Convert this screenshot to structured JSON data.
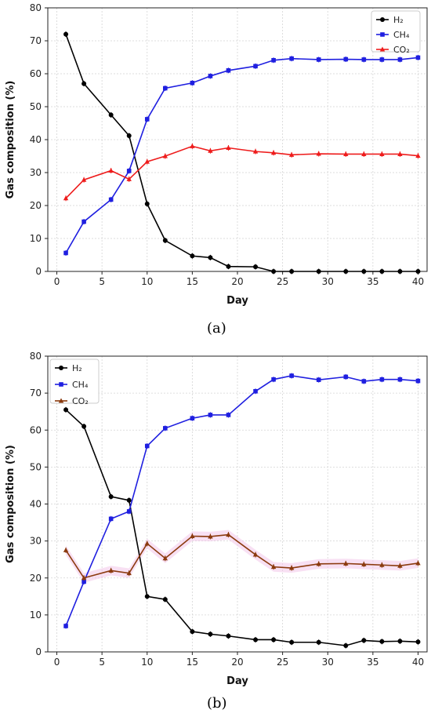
{
  "chart_data": [
    {
      "type": "line",
      "panel": "(a)",
      "xlabel": "Day",
      "ylabel": "Gas composition (%)",
      "xlim": [
        -1,
        41
      ],
      "ylim": [
        0,
        80
      ],
      "xticks": [
        0,
        5,
        10,
        15,
        20,
        25,
        30,
        35,
        40
      ],
      "yticks": [
        0,
        10,
        20,
        30,
        40,
        50,
        60,
        70,
        80
      ],
      "grid": true,
      "legend": "top-right",
      "series": [
        {
          "name": "H₂",
          "color": "#000000",
          "marker": "diamond",
          "x": [
            1,
            3,
            6,
            8,
            10,
            12,
            15,
            17,
            19,
            22,
            24,
            26,
            29,
            32,
            34,
            36,
            38,
            40
          ],
          "y": [
            72.0,
            57.0,
            47.5,
            41.2,
            20.5,
            9.4,
            4.7,
            4.2,
            1.5,
            1.4,
            0,
            0,
            0,
            0,
            0,
            0,
            0,
            0
          ]
        },
        {
          "name": "CH₄",
          "color": "#1f1fe0",
          "marker": "square",
          "x": [
            1,
            3,
            6,
            8,
            10,
            12,
            15,
            17,
            19,
            22,
            24,
            26,
            29,
            32,
            34,
            36,
            38,
            40
          ],
          "y": [
            5.6,
            15.1,
            21.8,
            30.5,
            46.2,
            55.6,
            57.2,
            59.3,
            61.0,
            62.3,
            64.1,
            64.6,
            64.3,
            64.4,
            64.3,
            64.3,
            64.3,
            64.9
          ]
        },
        {
          "name": "CO₂",
          "color": "#ee1c1c",
          "marker": "triangle",
          "x": [
            1,
            3,
            6,
            8,
            10,
            12,
            15,
            17,
            19,
            22,
            24,
            26,
            29,
            32,
            34,
            36,
            38,
            40
          ],
          "y": [
            22.2,
            27.8,
            30.6,
            28.0,
            33.3,
            35.0,
            38.0,
            36.6,
            37.5,
            36.4,
            36.0,
            35.4,
            35.7,
            35.6,
            35.6,
            35.6,
            35.6,
            35.1
          ]
        }
      ]
    },
    {
      "type": "line",
      "panel": "(b)",
      "xlabel": "Day",
      "ylabel": "Gas composition (%)",
      "xlim": [
        -1,
        41
      ],
      "ylim": [
        0,
        80
      ],
      "xticks": [
        0,
        5,
        10,
        15,
        20,
        25,
        30,
        35,
        40
      ],
      "yticks": [
        0,
        10,
        20,
        30,
        40,
        50,
        60,
        70,
        80
      ],
      "grid": true,
      "legend": "top-left",
      "series": [
        {
          "name": "H₂",
          "color": "#000000",
          "marker": "diamond",
          "x": [
            1,
            3,
            6,
            8,
            10,
            12,
            15,
            17,
            19,
            22,
            24,
            26,
            29,
            32,
            34,
            36,
            38,
            40
          ],
          "y": [
            65.5,
            61.0,
            42.0,
            41.0,
            15.0,
            14.2,
            5.5,
            4.8,
            4.3,
            3.3,
            3.3,
            2.6,
            2.6,
            1.7,
            3.1,
            2.8,
            2.9,
            2.7
          ]
        },
        {
          "name": "CH₄",
          "color": "#1f1fe0",
          "marker": "square",
          "x": [
            1,
            3,
            6,
            8,
            10,
            12,
            15,
            17,
            19,
            22,
            24,
            26,
            29,
            32,
            34,
            36,
            38,
            40
          ],
          "y": [
            7.0,
            19.0,
            36.0,
            38.0,
            55.7,
            60.5,
            63.2,
            64.1,
            64.1,
            70.5,
            73.7,
            74.7,
            73.6,
            74.4,
            73.2,
            73.7,
            73.7,
            73.3
          ]
        },
        {
          "name": "CO₂",
          "color": "#8b3a0e",
          "marker": "triangle",
          "x": [
            1,
            3,
            6,
            8,
            10,
            12,
            15,
            17,
            19,
            22,
            24,
            26,
            29,
            32,
            34,
            36,
            38,
            40
          ],
          "y": [
            27.5,
            20.0,
            22.0,
            21.3,
            29.3,
            25.3,
            31.3,
            31.2,
            31.7,
            26.3,
            23.0,
            22.7,
            23.8,
            23.9,
            23.7,
            23.5,
            23.3,
            24.0
          ]
        }
      ]
    }
  ]
}
